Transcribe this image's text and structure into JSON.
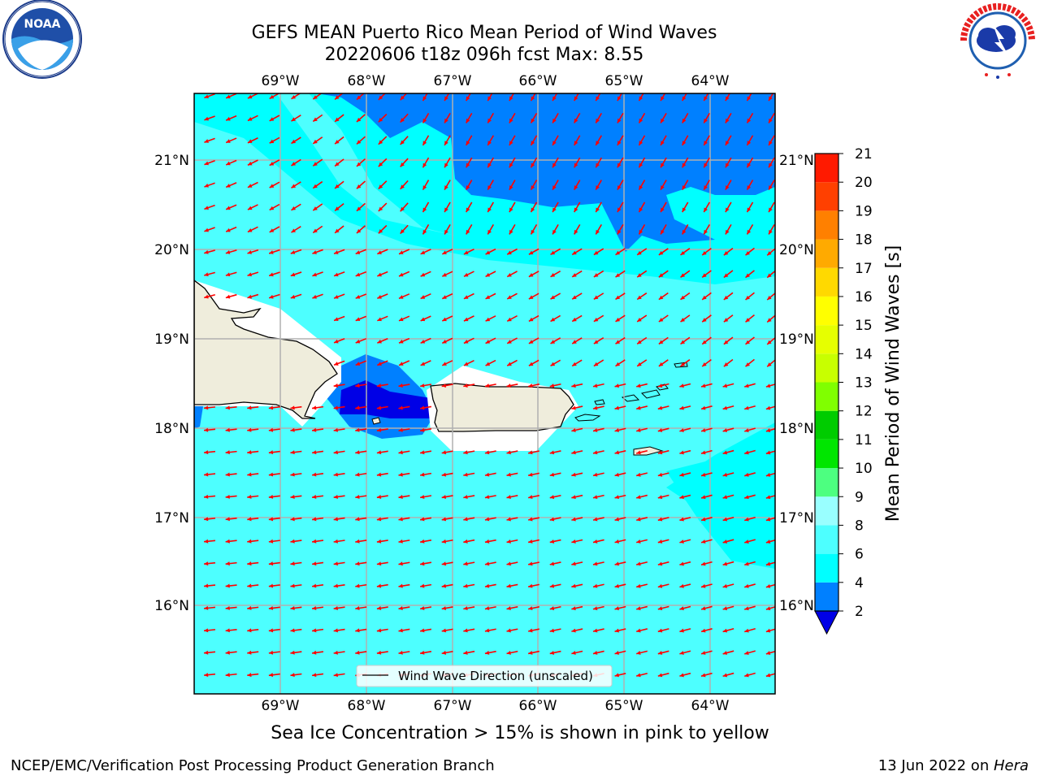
{
  "header": {
    "title_line1": "GEFS MEAN Puerto Rico Mean Period of Wind Waves",
    "title_line2": "20220606 t18z 096h fcst   Max: 8.55"
  },
  "map": {
    "lon_labels": [
      "69°W",
      "68°W",
      "67°W",
      "66°W",
      "65°W",
      "64°W"
    ],
    "lat_labels": [
      "21°N",
      "20°N",
      "19°N",
      "18°N",
      "17°N",
      "16°N"
    ],
    "legend_label": "Wind Wave Direction (unscaled)",
    "arrow_color": "#ff0000",
    "land_color": "#efeddc"
  },
  "colorbar": {
    "label": "Mean Period of Wind Waves [s]",
    "ticks": [
      "2",
      "4",
      "6",
      "8",
      "9",
      "10",
      "11",
      "12",
      "13",
      "14",
      "15",
      "16",
      "17",
      "18",
      "19",
      "20",
      "21"
    ],
    "colors": [
      "#0000e6",
      "#0080ff",
      "#00ffff",
      "#4dffff",
      "#99ffff",
      "#4dff80",
      "#00e600",
      "#00cc00",
      "#80ff00",
      "#c8ff00",
      "#e6ff00",
      "#ffff00",
      "#ffd900",
      "#ffaa00",
      "#ff8000",
      "#ff4000",
      "#ff1a00",
      "#ff0000"
    ]
  },
  "caption": "Sea Ice Concentration > 15% is shown in pink to yellow",
  "footer": {
    "left": "NCEP/EMC/Verification Post Processing Product Generation Branch",
    "right_prefix": "13 Jun 2022 on ",
    "right_host": "Hera"
  },
  "logos": {
    "left": "noaa-logo",
    "right": "nws-logo"
  }
}
